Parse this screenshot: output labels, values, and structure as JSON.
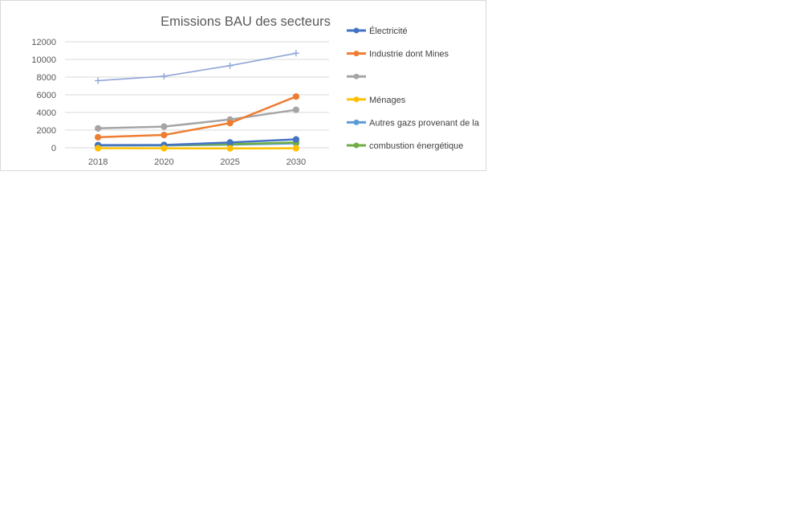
{
  "chart_data": {
    "type": "line",
    "title": "Emissions BAU des secteurs",
    "xlabel": "",
    "ylabel": "",
    "categories": [
      "2018",
      "2020",
      "2025",
      "2030"
    ],
    "ylim": [
      0,
      12000
    ],
    "yticks": [
      "0",
      "2000",
      "4000",
      "6000",
      "8000",
      "10000",
      "12000"
    ],
    "grid": true,
    "legend_position": "right",
    "series": [
      {
        "name": "Électricité",
        "color": "#4472c4",
        "marker": "circle",
        "values": [
          300,
          320,
          600,
          950
        ]
      },
      {
        "name": "Industrie dont Mines",
        "color": "#ed7d31",
        "marker": "circle",
        "values": [
          1200,
          1450,
          2800,
          5800
        ]
      },
      {
        "name": "",
        "color": "#a5a5a5",
        "marker": "circle",
        "values": [
          2200,
          2400,
          3200,
          4300
        ]
      },
      {
        "name": "Ménages",
        "color": "#ffc000",
        "marker": "circle",
        "values": [
          -50,
          -60,
          -70,
          -60
        ]
      },
      {
        "name": "Autres gazs provenant de la",
        "color": "#5b9bd5",
        "marker": "circle",
        "values": [
          250,
          260,
          350,
          500
        ]
      },
      {
        "name": "combustion énergétique",
        "color": "#70ad47",
        "marker": "circle",
        "values": [
          300,
          310,
          400,
          600
        ]
      },
      {
        "name": "",
        "color": "#8fa6d6",
        "marker": "plus",
        "values": [
          7600,
          8100,
          9300,
          10700
        ]
      }
    ]
  }
}
